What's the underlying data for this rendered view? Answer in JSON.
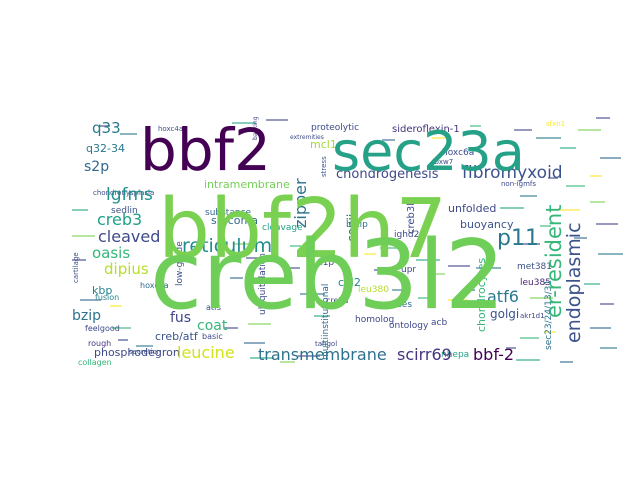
{
  "words": [
    {
      "text": "creb3l2",
      "color": "#6ece58"
    },
    {
      "text": "bbf2h7",
      "color": "#7ad151"
    },
    {
      "text": "sec23a",
      "color": "#25a187"
    },
    {
      "text": "bbf2",
      "color": "#440154"
    },
    {
      "text": "p11",
      "color": "#2a788e"
    },
    {
      "text": "fibromyxoid",
      "color": "#3b528b"
    },
    {
      "text": "reticulum",
      "color": "#228c8d"
    },
    {
      "text": "transmembrane",
      "color": "#2c728e"
    },
    {
      "text": "leucine",
      "color": "#d2e21b"
    },
    {
      "text": "er-resident",
      "color": "#35b779"
    },
    {
      "text": "endoplasmic",
      "color": "#3b528b"
    },
    {
      "text": "scirr69",
      "color": "#46337e"
    },
    {
      "text": "bbf-2",
      "color": "#440154"
    },
    {
      "text": "chondrogenesis",
      "color": "#3e4989"
    },
    {
      "text": "lgfms",
      "color": "#21918c"
    },
    {
      "text": "cleaved",
      "color": "#3e4989"
    },
    {
      "text": "zipper",
      "color": "#2c728e"
    },
    {
      "text": "q33",
      "color": "#2a788e"
    },
    {
      "text": "s2p",
      "color": "#31688e"
    },
    {
      "text": "creb3",
      "color": "#1fa088"
    },
    {
      "text": "oasis",
      "color": "#35b779"
    },
    {
      "text": "dipius",
      "color": "#b5de2b"
    },
    {
      "text": "fus",
      "color": "#414487"
    },
    {
      "text": "coat",
      "color": "#35b779"
    },
    {
      "text": "atf6",
      "color": "#2a788e"
    },
    {
      "text": "bzip",
      "color": "#2c728e"
    },
    {
      "text": "golgi",
      "color": "#3b528b"
    },
    {
      "text": "mcl1",
      "color": "#a0da39"
    },
    {
      "text": "copii",
      "color": "#31688e"
    },
    {
      "text": "q32-34",
      "color": "#2a788e"
    },
    {
      "text": "intramembrane",
      "color": "#73d056"
    },
    {
      "text": "sarcoma",
      "color": "#31688e"
    },
    {
      "text": "kbp",
      "color": "#26828e"
    },
    {
      "text": "col2",
      "color": "#26828e"
    },
    {
      "text": "chondrocytes",
      "color": "#35b779"
    },
    {
      "text": "phosphodegron",
      "color": "#3e4989"
    },
    {
      "text": "buoyancy",
      "color": "#3b528b"
    },
    {
      "text": "unfolded",
      "color": "#3e4989"
    },
    {
      "text": "creb/atf",
      "color": "#3b528b"
    },
    {
      "text": "sideroflexin-1",
      "color": "#46337e"
    },
    {
      "text": "proteolytic",
      "color": "#3e4989"
    },
    {
      "text": "hoxc6a",
      "color": "#3e4989"
    },
    {
      "text": "ubiquitylation",
      "color": "#3e4989"
    },
    {
      "text": "low-grade",
      "color": "#3b528b"
    },
    {
      "text": "sedlin",
      "color": "#3b528b"
    },
    {
      "text": "substance",
      "color": "#31688e"
    },
    {
      "text": "cleavage",
      "color": "#20a386"
    },
    {
      "text": "creba",
      "color": "#414487"
    },
    {
      "text": "homolog",
      "color": "#3e4989"
    },
    {
      "text": "multiinstitutional",
      "color": "#31688e"
    },
    {
      "text": "s1p",
      "color": "#3e4989"
    },
    {
      "text": "b-zip",
      "color": "#2c728e"
    },
    {
      "text": "ighd2",
      "color": "#3e4989"
    },
    {
      "text": "creb3l1",
      "color": "#3e4989"
    },
    {
      "text": "met381",
      "color": "#3b528b"
    },
    {
      "text": "leu385",
      "color": "#482878"
    },
    {
      "text": "sec23/24/13/31",
      "color": "#2c728e"
    },
    {
      "text": "upr",
      "color": "#3e4989"
    },
    {
      "text": "nexuses",
      "color": "#31688e"
    },
    {
      "text": "leu380",
      "color": "#b5de2b"
    },
    {
      "text": "ontology",
      "color": "#3e4989"
    },
    {
      "text": "acb",
      "color": "#3e4989"
    },
    {
      "text": "nhepa",
      "color": "#20a386"
    },
    {
      "text": "akr1d1",
      "color": "#414487"
    },
    {
      "text": "hoxc4a",
      "color": "#3b528b"
    },
    {
      "text": "hoxc8a",
      "color": "#31688e"
    },
    {
      "text": "fusion",
      "color": "#26828e"
    },
    {
      "text": "rough",
      "color": "#46337e"
    },
    {
      "text": "collagen",
      "color": "#35b779"
    },
    {
      "text": "feelgood",
      "color": "#3e4989"
    },
    {
      "text": "cartilage",
      "color": "#3b528b"
    },
    {
      "text": "chondrodysplasia",
      "color": "#3e4989"
    },
    {
      "text": "basic",
      "color": "#3e4989"
    },
    {
      "text": "atfs",
      "color": "#3e4989"
    },
    {
      "text": "secretion",
      "color": "#3b528b"
    },
    {
      "text": "tangol",
      "color": "#3e4989"
    },
    {
      "text": "fbxw7",
      "color": "#3e4989"
    },
    {
      "text": "non-igmfs",
      "color": "#3e4989"
    },
    {
      "text": "sfxn1",
      "color": "#fde725"
    },
    {
      "text": "stress",
      "color": "#3b528b"
    },
    {
      "text": "extremities",
      "color": "#3e4989"
    },
    {
      "text": "backing",
      "color": "#3e4989"
    }
  ]
}
